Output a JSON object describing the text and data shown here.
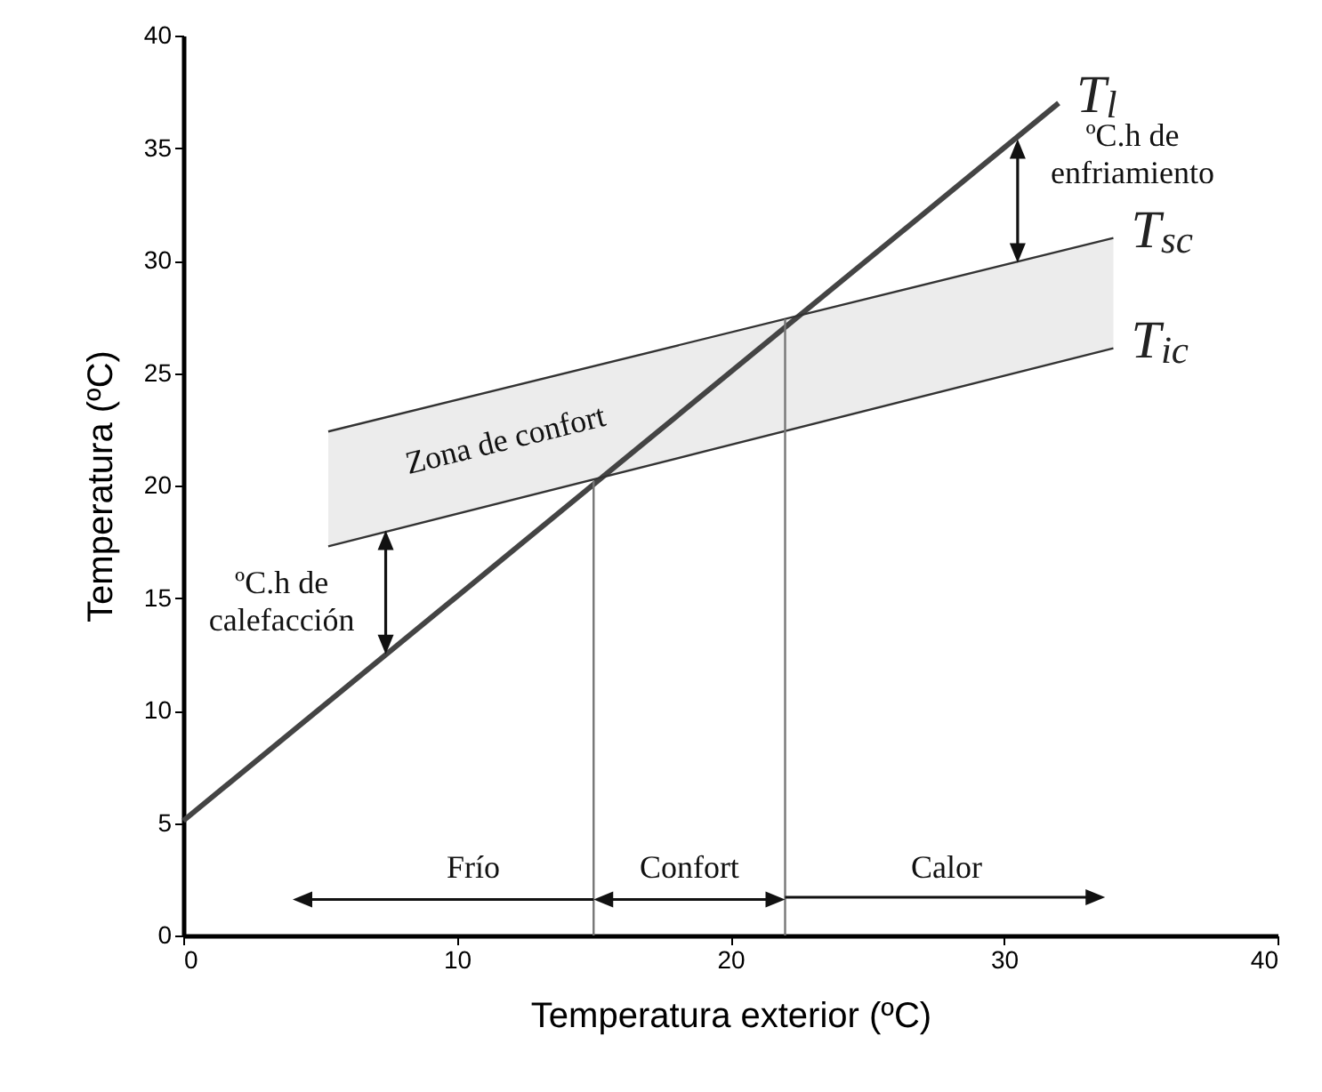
{
  "chart_data": {
    "type": "line",
    "xlabel": "Temperatura exterior (ºC)",
    "ylabel": "Temperatura (ºC)",
    "xlim": [
      0,
      40
    ],
    "xticks": [
      0,
      10,
      20,
      30,
      40
    ],
    "ylim": [
      0,
      40
    ],
    "yticks": [
      0,
      5,
      10,
      15,
      20,
      25,
      30,
      35,
      40
    ],
    "grid": false,
    "series": [
      {
        "name": "T$_{l}$",
        "color": "#444444",
        "x": [
          0,
          32
        ],
        "values": [
          5.1,
          37.0
        ]
      },
      {
        "name": "T$_{sc}$",
        "color": "#333333",
        "x": [
          5.3,
          34
        ],
        "values": [
          22.4,
          31.0
        ],
        "lower": [
          17.3,
          26.1
        ],
        "upper": [
          22.4,
          31.0
        ]
      },
      {
        "name": "T$_{ic}$",
        "color": "#333333",
        "x": [
          5.3,
          34
        ],
        "values": [
          17.3,
          26.1
        ]
      },
      {
        "color": "#777777",
        "x": [
          15,
          15
        ],
        "values": [
          0,
          20.2
        ]
      },
      {
        "color": "#777777",
        "x": [
          22,
          22
        ],
        "values": [
          0,
          27.4
        ]
      }
    ],
    "annotations": [
      "Zona de confort",
      "ºC.h de\ncalefacción",
      "ºC.h de\nenfriamiento",
      "Frío",
      "Confort",
      "Calor"
    ]
  }
}
